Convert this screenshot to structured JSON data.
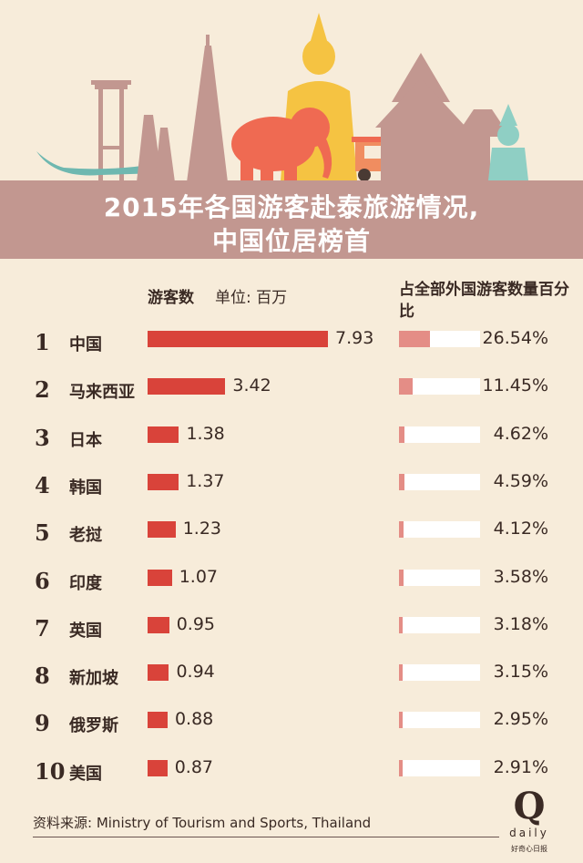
{
  "header": {
    "title_line1": "2015年各国游客赴泰旅游情况,",
    "title_line2": "中国位居榜首"
  },
  "columns": {
    "count_label": "游客数",
    "unit_label": "单位: 百万",
    "share_label": "占全部外国游客数量百分比"
  },
  "chart_data": {
    "type": "bar",
    "categories": [
      "中国",
      "马来西亚",
      "日本",
      "韩国",
      "老挝",
      "印度",
      "英国",
      "新加坡",
      "俄罗斯",
      "美国"
    ],
    "ranks": [
      "1",
      "2",
      "3",
      "4",
      "5",
      "6",
      "7",
      "8",
      "9",
      "10"
    ],
    "series": [
      {
        "values": [
          7.93,
          3.42,
          1.38,
          1.37,
          1.23,
          1.07,
          0.95,
          0.94,
          0.88,
          0.87
        ],
        "labels": [
          "7.93",
          "3.42",
          "1.38",
          "1.37",
          "1.23",
          "1.07",
          "0.95",
          "0.94",
          "0.88",
          "0.87"
        ]
      },
      {
        "values": [
          26.54,
          11.45,
          4.62,
          4.59,
          4.12,
          3.58,
          3.18,
          3.15,
          2.95,
          2.91
        ],
        "labels": [
          "26.54%",
          "11.45%",
          "4.62%",
          "4.59%",
          "4.12%",
          "3.58%",
          "3.18%",
          "3.15%",
          "2.95%",
          "2.91%"
        ]
      }
    ],
    "colors": {
      "bar": "#d9433a",
      "share_fill": "#e48d86",
      "share_track": "#ffffff"
    }
  },
  "footer": {
    "source": "资料来源: Ministry of Tourism and Sports, Thailand",
    "logo_letter": "Q",
    "logo_word": "daily",
    "logo_sub": "好奇心日报"
  },
  "colors": {
    "background": "#f7ecda",
    "title_band": "#c29790",
    "buddha": "#f5c342",
    "elephant": "#ef6a52",
    "tuktuk": "#f08d60",
    "temple": "#c29790",
    "guardian": "#8fcfc4"
  }
}
